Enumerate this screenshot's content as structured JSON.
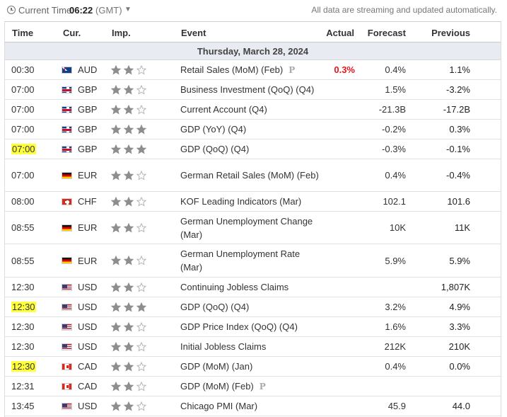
{
  "header": {
    "current_time_label": "Current Time:",
    "current_time": "06:22",
    "timezone": "(GMT)",
    "streaming_note": "All data are streaming and updated automatically."
  },
  "columns": {
    "time": "Time",
    "currency": "Cur.",
    "importance": "Imp.",
    "event": "Event",
    "actual": "Actual",
    "forecast": "Forecast",
    "previous": "Previous"
  },
  "date_heading": "Thursday, March 28, 2024",
  "colors": {
    "highlight": "#ffff3a",
    "negative_actual": "#e8141b",
    "star_on": "#8e8e8e",
    "star_off": "#ffffff",
    "day_row_bg": "#e9ebf2"
  },
  "events": [
    {
      "time": "00:30",
      "highlight": false,
      "currency": "AUD",
      "flag": "flag-aud",
      "importance": 2,
      "event": "Retail Sales (MoM) (Feb)",
      "preliminary": true,
      "actual": "0.3%",
      "actual_status": "bad",
      "forecast": "0.4%",
      "previous": "1.1%",
      "height": 28
    },
    {
      "time": "07:00",
      "highlight": false,
      "currency": "GBP",
      "flag": "flag-gbp",
      "importance": 2,
      "event": "Business Investment (QoQ) (Q4)",
      "preliminary": false,
      "actual": "",
      "actual_status": "",
      "forecast": "1.5%",
      "previous": "-3.2%",
      "height": 28
    },
    {
      "time": "07:00",
      "highlight": false,
      "currency": "GBP",
      "flag": "flag-gbp",
      "importance": 2,
      "event": "Current Account (Q4)",
      "preliminary": false,
      "actual": "",
      "actual_status": "",
      "forecast": "-21.3B",
      "previous": "-17.2B",
      "height": 28
    },
    {
      "time": "07:00",
      "highlight": false,
      "currency": "GBP",
      "flag": "flag-gbp",
      "importance": 3,
      "event": "GDP (YoY) (Q4)",
      "preliminary": false,
      "actual": "",
      "actual_status": "",
      "forecast": "-0.2%",
      "previous": "0.3%",
      "height": 28
    },
    {
      "time": "07:00",
      "highlight": true,
      "currency": "GBP",
      "flag": "flag-gbp",
      "importance": 3,
      "event": "GDP (QoQ) (Q4)",
      "preliminary": false,
      "actual": "",
      "actual_status": "",
      "forecast": "-0.3%",
      "previous": "-0.1%",
      "height": 28
    },
    {
      "time": "07:00",
      "highlight": false,
      "currency": "EUR",
      "flag": "flag-eur",
      "importance": 2,
      "event": "German Retail Sales (MoM) (Feb)",
      "preliminary": false,
      "actual": "",
      "actual_status": "",
      "forecast": "0.4%",
      "previous": "-0.4%",
      "height": 46
    },
    {
      "time": "08:00",
      "highlight": false,
      "currency": "CHF",
      "flag": "flag-chf",
      "importance": 2,
      "event": "KOF Leading Indicators (Mar)",
      "preliminary": false,
      "actual": "",
      "actual_status": "",
      "forecast": "102.1",
      "previous": "101.6",
      "height": 28
    },
    {
      "time": "08:55",
      "highlight": false,
      "currency": "EUR",
      "flag": "flag-eur",
      "importance": 2,
      "event": "German Unemployment Change (Mar)",
      "preliminary": false,
      "actual": "",
      "actual_status": "",
      "forecast": "10K",
      "previous": "11K",
      "height": 46
    },
    {
      "time": "08:55",
      "highlight": false,
      "currency": "EUR",
      "flag": "flag-eur",
      "importance": 2,
      "event": "German Unemployment Rate (Mar)",
      "preliminary": false,
      "actual": "",
      "actual_status": "",
      "forecast": "5.9%",
      "previous": "5.9%",
      "height": 47
    },
    {
      "time": "12:30",
      "highlight": false,
      "currency": "USD",
      "flag": "flag-usd",
      "importance": 2,
      "event": "Continuing Jobless Claims",
      "preliminary": false,
      "actual": "",
      "actual_status": "",
      "forecast": "",
      "previous": "1,807K",
      "height": 28
    },
    {
      "time": "12:30",
      "highlight": true,
      "currency": "USD",
      "flag": "flag-usd",
      "importance": 3,
      "event": "GDP (QoQ) (Q4)",
      "preliminary": false,
      "actual": "",
      "actual_status": "",
      "forecast": "3.2%",
      "previous": "4.9%",
      "height": 28
    },
    {
      "time": "12:30",
      "highlight": false,
      "currency": "USD",
      "flag": "flag-usd",
      "importance": 2,
      "event": "GDP Price Index (QoQ) (Q4)",
      "preliminary": false,
      "actual": "",
      "actual_status": "",
      "forecast": "1.6%",
      "previous": "3.3%",
      "height": 28
    },
    {
      "time": "12:30",
      "highlight": false,
      "currency": "USD",
      "flag": "flag-usd",
      "importance": 2,
      "event": "Initial Jobless Claims",
      "preliminary": false,
      "actual": "",
      "actual_status": "",
      "forecast": "212K",
      "previous": "210K",
      "height": 28
    },
    {
      "time": "12:30",
      "highlight": true,
      "currency": "CAD",
      "flag": "flag-cad",
      "importance": 2,
      "event": "GDP (MoM) (Jan)",
      "preliminary": false,
      "actual": "",
      "actual_status": "",
      "forecast": "0.4%",
      "previous": "0.0%",
      "height": 28
    },
    {
      "time": "12:31",
      "highlight": false,
      "currency": "CAD",
      "flag": "flag-cad",
      "importance": 2,
      "event": "GDP (MoM) (Feb)",
      "preliminary": true,
      "actual": "",
      "actual_status": "",
      "forecast": "",
      "previous": "",
      "height": 28
    },
    {
      "time": "13:45",
      "highlight": false,
      "currency": "USD",
      "flag": "flag-usd",
      "importance": 2,
      "event": "Chicago PMI (Mar)",
      "preliminary": false,
      "actual": "",
      "actual_status": "",
      "forecast": "45.9",
      "previous": "44.0",
      "height": 28
    }
  ]
}
